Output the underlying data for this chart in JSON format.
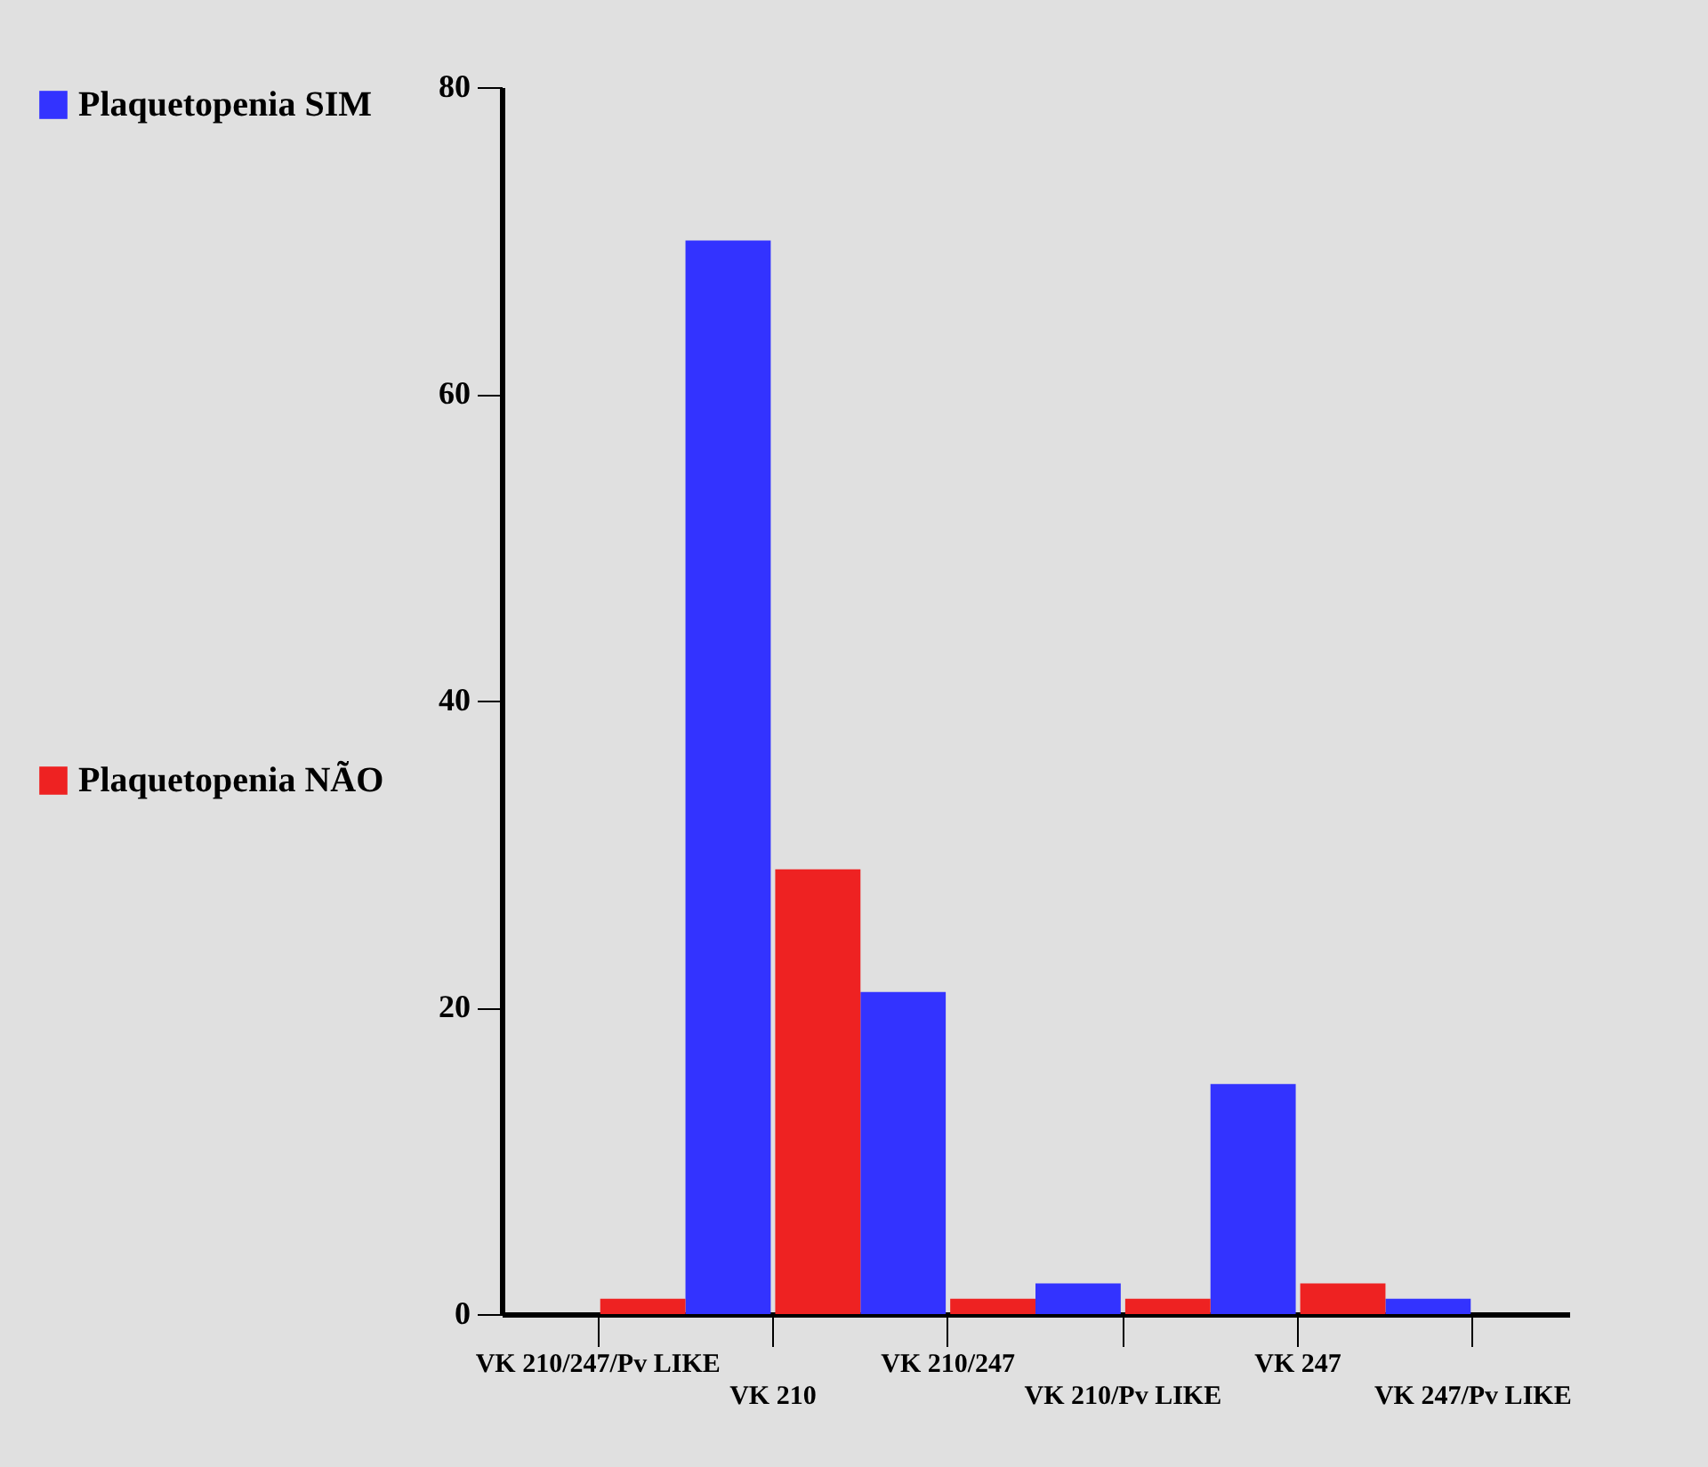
{
  "chart_data": {
    "type": "bar",
    "categories": [
      "VK 210/247/Pv LIKE",
      "VK 210",
      "VK 210/247",
      "VK 210/Pv LIKE",
      "VK 247",
      "VK 247/Pv LIKE"
    ],
    "series": [
      {
        "name": "Plaquetopenia SIM",
        "color": "#3333ff",
        "values": [
          0,
          70,
          21,
          2,
          15,
          1
        ]
      },
      {
        "name": "Plaquetopenia NÃO",
        "color": "#ee2222",
        "values": [
          1,
          29,
          1,
          1,
          2,
          0
        ]
      }
    ],
    "ylim": [
      0,
      80
    ],
    "yticks": [
      0,
      20,
      40,
      60,
      80
    ],
    "legend": "left"
  }
}
